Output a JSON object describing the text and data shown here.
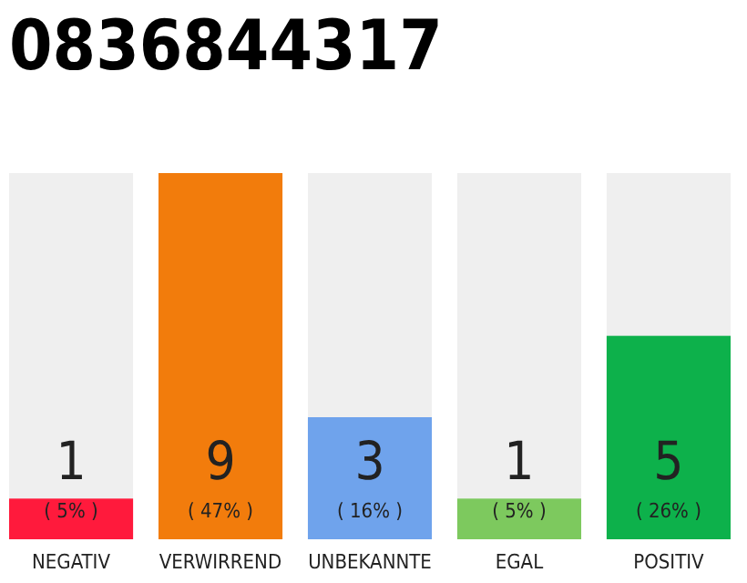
{
  "chart_data": {
    "type": "bar",
    "title": "0836844317",
    "categories": [
      "NEGATIV",
      "VERWIRREND",
      "UNBEKANNTE",
      "EGAL",
      "POSITIV"
    ],
    "values": [
      1,
      9,
      3,
      1,
      5
    ],
    "colors": [
      "#ff1a3c",
      "#f27c0c",
      "#6fa3ec",
      "#7dc95e",
      "#0db14b"
    ],
    "ylim": [
      0,
      9
    ],
    "tick_labels": "x",
    "data_labels": true,
    "annotations": [
      "( 5% )",
      "( 47% )",
      "( 16% )",
      "( 5% )",
      "( 26% )"
    ]
  }
}
